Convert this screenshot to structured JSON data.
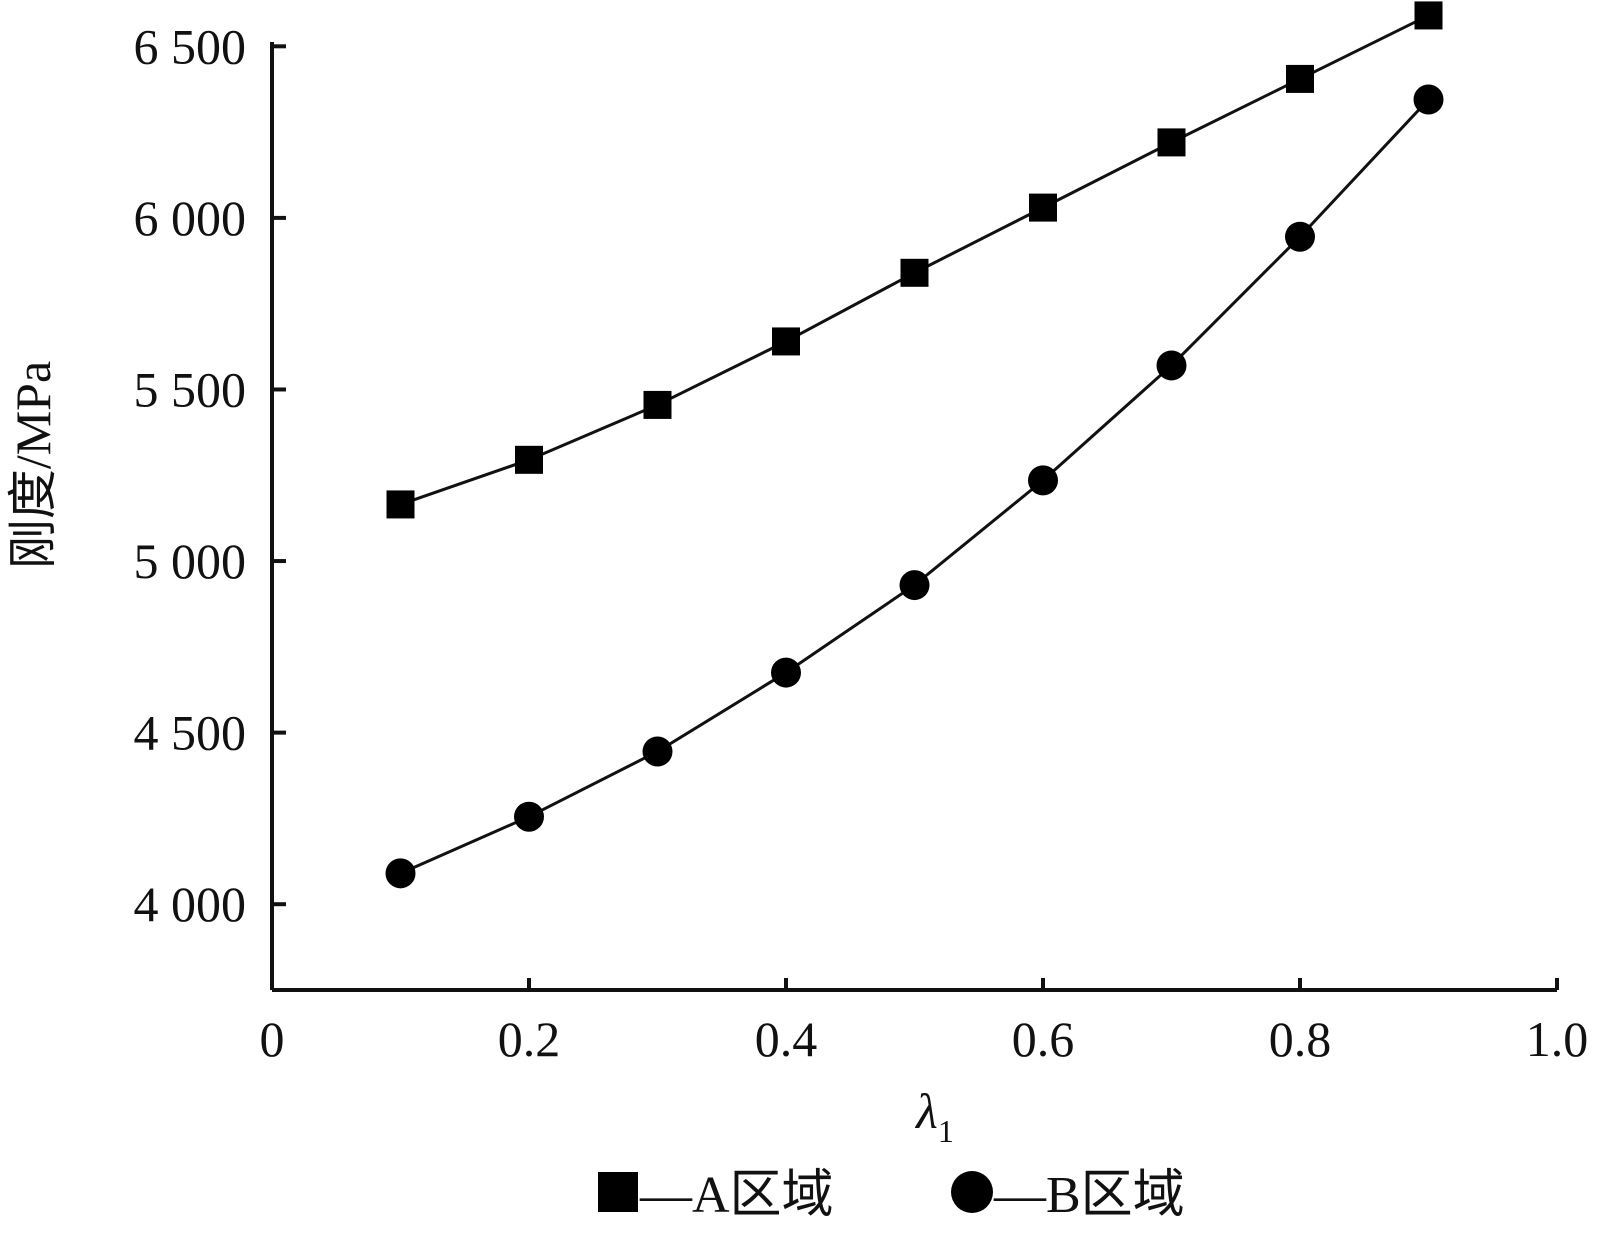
{
  "chart_data": {
    "type": "line",
    "title": "",
    "xlabel": "λ",
    "xlabel_subscript": "1",
    "ylabel": "刚度/MPa",
    "xlim": [
      0,
      1.0
    ],
    "ylim": [
      3750,
      6600
    ],
    "xticks": [
      0,
      0.2,
      0.4,
      0.6,
      0.8,
      1.0
    ],
    "xtick_labels": [
      "0",
      "0.2",
      "0.4",
      "0.6",
      "0.8",
      "1.0"
    ],
    "yticks": [
      4000,
      4500,
      5000,
      5500,
      6000,
      6500
    ],
    "ytick_labels": [
      "4 000",
      "4 500",
      "5 000",
      "5 500",
      "6 000",
      "6 500"
    ],
    "grid": false,
    "legend_position": "bottom",
    "x": [
      0.1,
      0.2,
      0.3,
      0.4,
      0.5,
      0.6,
      0.7,
      0.8,
      0.9
    ],
    "series": [
      {
        "name": "A区域",
        "legend_label": "—A区域",
        "marker": "square",
        "values": [
          5165,
          5295,
          5455,
          5640,
          5840,
          6030,
          6220,
          6405,
          6590
        ]
      },
      {
        "name": "B区域",
        "legend_label": "—B区域",
        "marker": "circle",
        "values": [
          4090,
          4255,
          4445,
          4675,
          4930,
          5235,
          5570,
          5945,
          6345
        ]
      }
    ],
    "colors": {
      "line": "#111111",
      "marker": "#000000",
      "axis": "#111111"
    }
  }
}
